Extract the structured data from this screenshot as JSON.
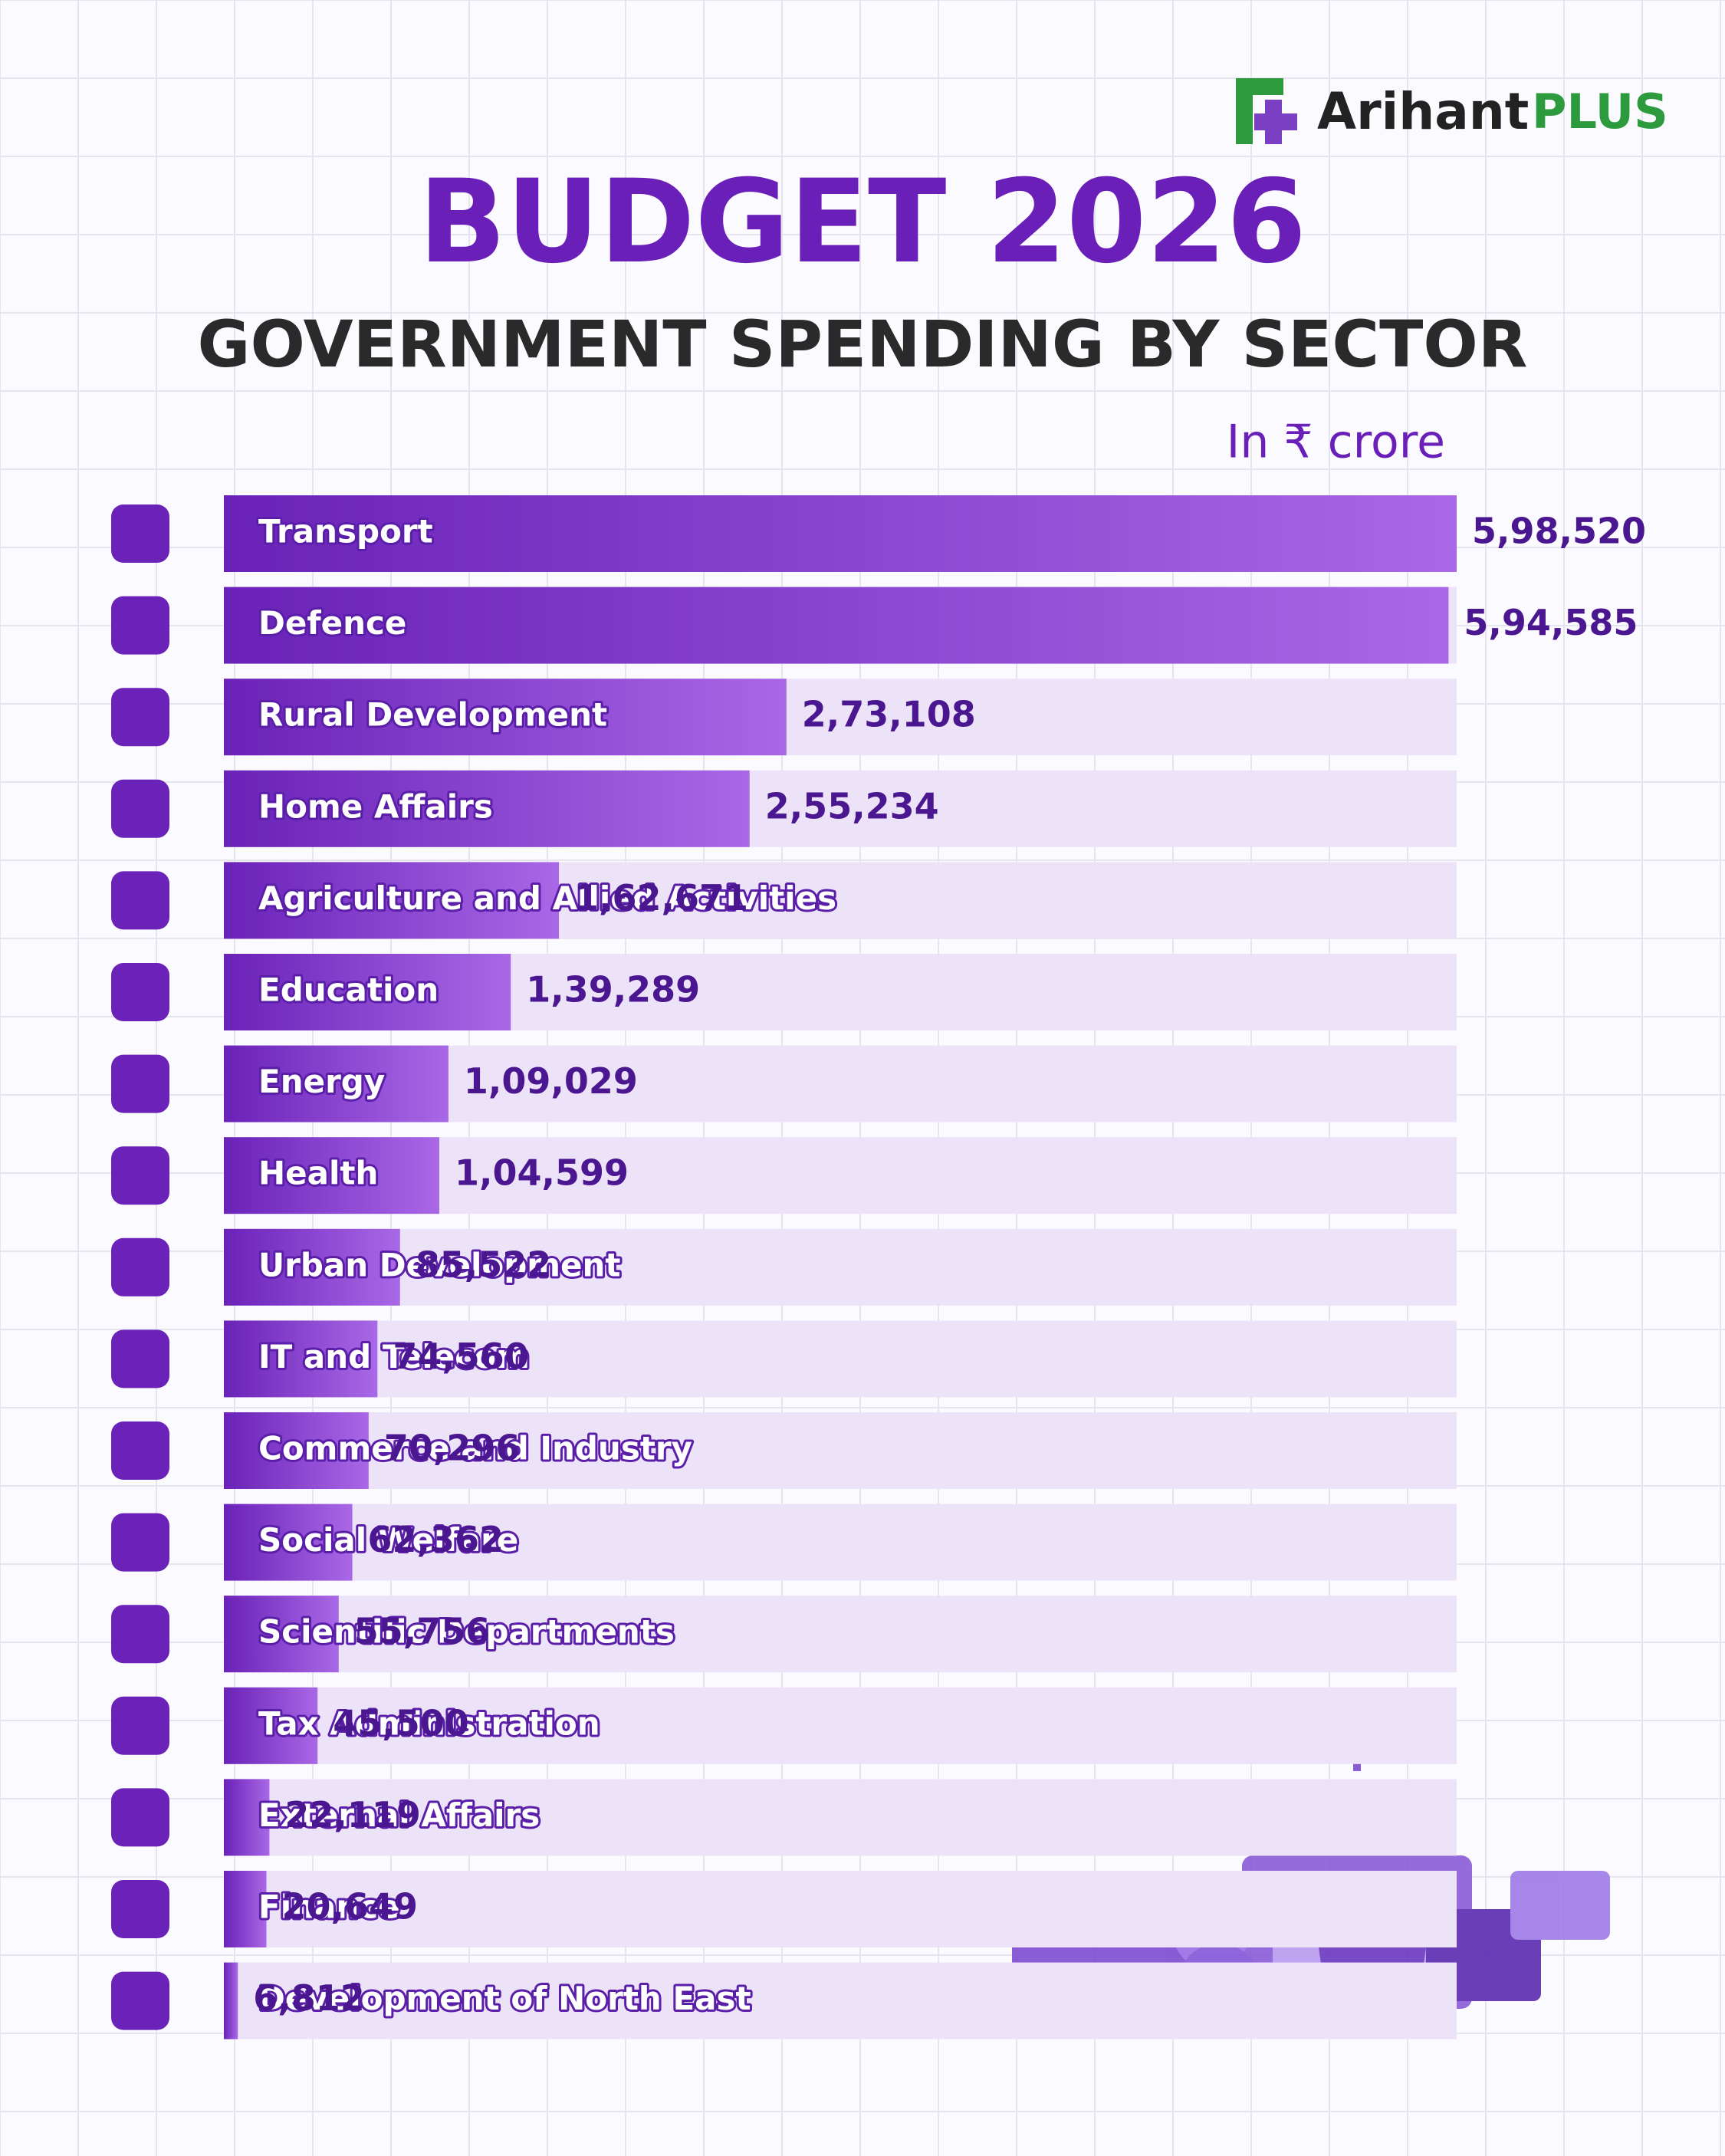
{
  "logo": {
    "name": "Arihant",
    "suffix": "PLUS"
  },
  "chart_data": {
    "type": "bar",
    "title": "BUDGET 2026",
    "subtitle": "GOVERNMENT SPENDING BY SECTOR",
    "unit_label": "In ₹ crore",
    "color": "#6a22b8",
    "categories": [
      "Transport",
      "Defence",
      "Rural Development",
      "Home Affairs",
      "Agriculture and Allied Activities",
      "Education",
      "Energy",
      "Health",
      "Urban Development",
      "IT and Telecom",
      "Commerce and Industry",
      "Social Welfare",
      "Scientific Departments",
      "Tax Administration",
      "External Affairs",
      "Finance",
      "Development of North East"
    ],
    "values": [
      598520,
      594585,
      273108,
      255234,
      162671,
      139289,
      109029,
      104599,
      85522,
      74560,
      70296,
      62362,
      55756,
      45500,
      22119,
      20649,
      6812
    ],
    "value_labels": [
      "5,98,520",
      "5,94,585",
      "2,73,108",
      "2,55,234",
      "1,62,671",
      "1,39,289",
      "1,09,029",
      "1,04,599",
      "85,522",
      "74,560",
      "70,296",
      "62,362",
      "55,756",
      "45,500",
      "22,119",
      "20,649",
      "6,812"
    ]
  }
}
